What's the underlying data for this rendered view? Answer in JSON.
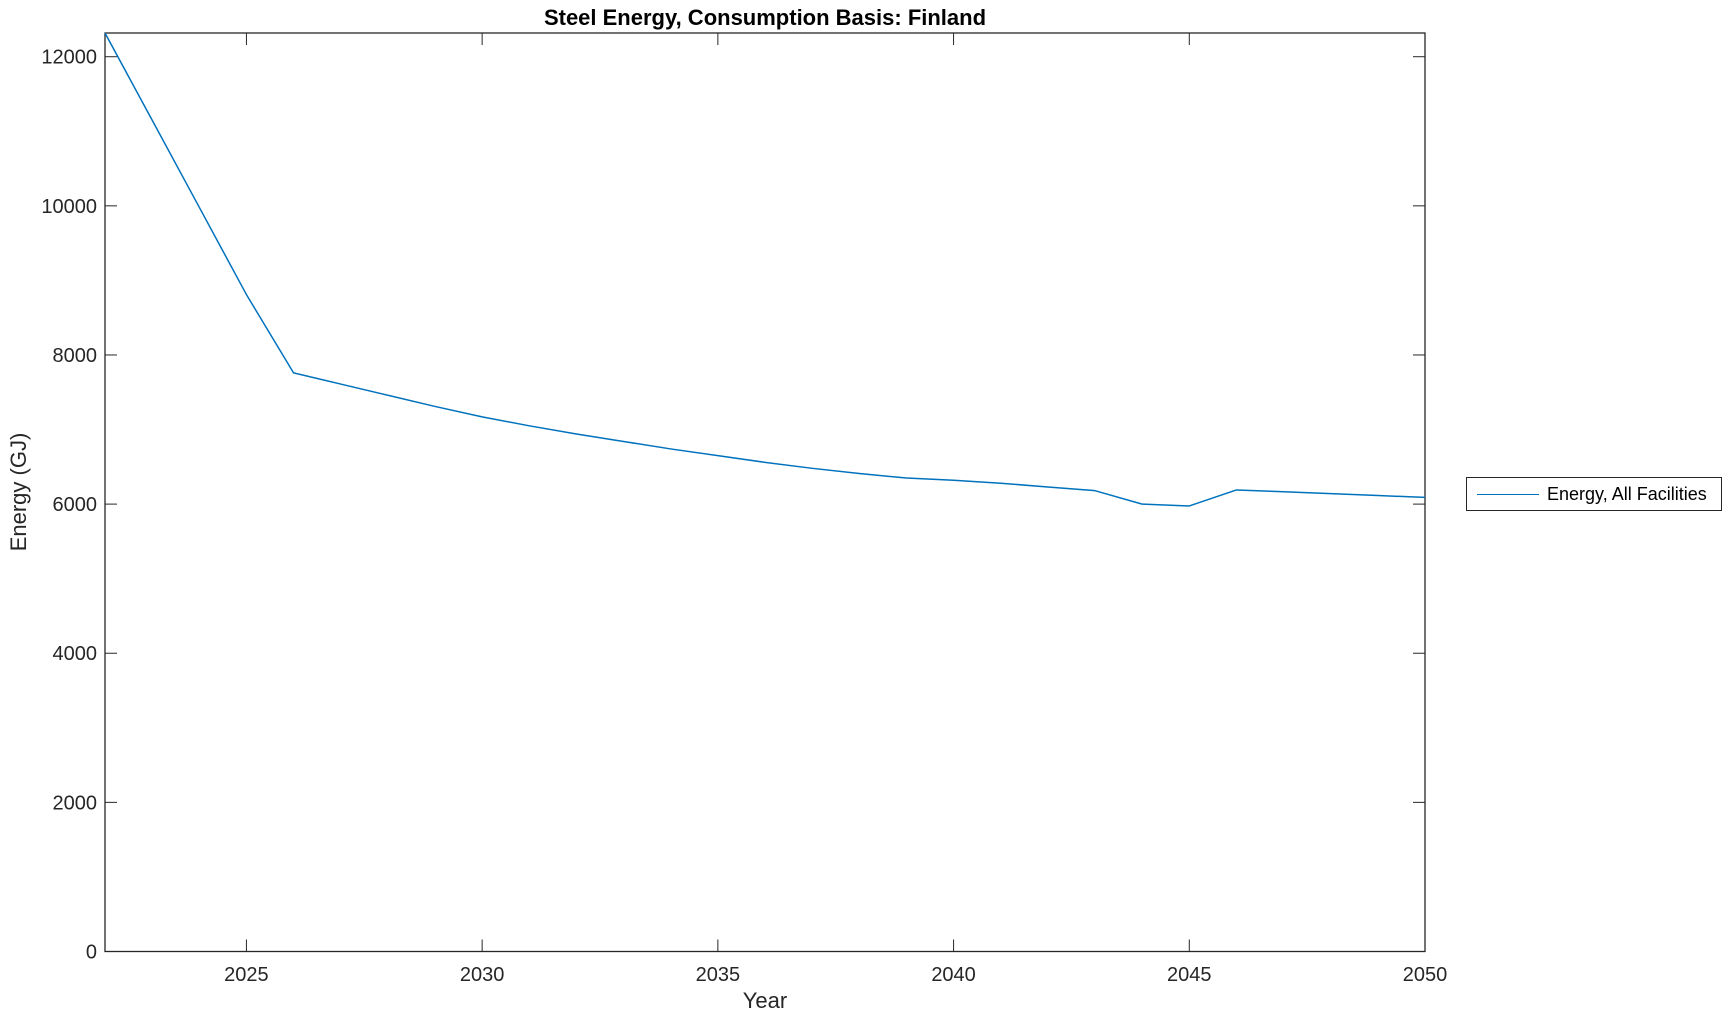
{
  "figure": {
    "title": "Steel Energy, Consumption Basis: Finland",
    "xlabel": "Year",
    "ylabel": "Energy (GJ)",
    "background_color": "#ffffff",
    "axis_color": "#262626",
    "legend": {
      "position": "east-outside",
      "entries": [
        {
          "label": "Energy, All Facilities",
          "color": "#0072BD"
        }
      ]
    }
  },
  "chart_data": {
    "type": "line",
    "title": "Steel Energy, Consumption Basis: Finland",
    "xlabel": "Year",
    "ylabel": "Energy (GJ)",
    "grid": false,
    "legend_position": "east-outside",
    "xlim": [
      2022,
      2050
    ],
    "ylim": [
      0,
      12318
    ],
    "xticks": [
      2025,
      2030,
      2035,
      2040,
      2045,
      2050
    ],
    "yticks": [
      0,
      2000,
      4000,
      6000,
      8000,
      10000,
      12000
    ],
    "x": [
      2022,
      2023,
      2024,
      2025,
      2026,
      2027,
      2028,
      2029,
      2030,
      2031,
      2032,
      2033,
      2034,
      2035,
      2036,
      2037,
      2038,
      2039,
      2040,
      2041,
      2042,
      2043,
      2044,
      2045,
      2046,
      2047,
      2048,
      2049,
      2050
    ],
    "series": [
      {
        "name": "Energy, All Facilities",
        "color": "#0072BD",
        "values": [
          12318,
          11150,
          9980,
          8810,
          7760,
          7610,
          7460,
          7310,
          7170,
          7050,
          6940,
          6840,
          6740,
          6650,
          6560,
          6480,
          6410,
          6350,
          6320,
          6280,
          6230,
          6180,
          6000,
          5975,
          6190,
          6165,
          6140,
          6115,
          6090
        ]
      }
    ]
  }
}
